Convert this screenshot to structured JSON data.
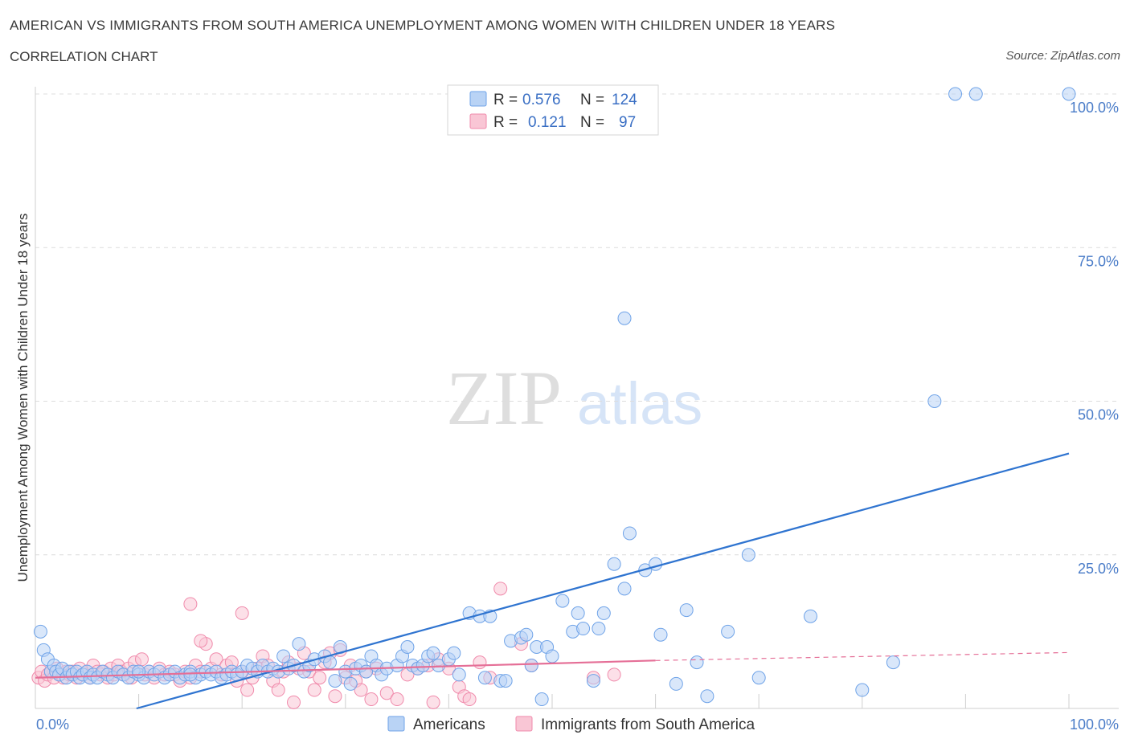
{
  "header": {
    "title": "AMERICAN VS IMMIGRANTS FROM SOUTH AMERICA UNEMPLOYMENT AMONG WOMEN WITH CHILDREN UNDER 18 YEARS",
    "subtitle": "CORRELATION CHART",
    "source": "Source: ZipAtlas.com"
  },
  "legend": {
    "r_label": "R =",
    "n_label": "N =",
    "series": [
      {
        "r": "0.576",
        "n": "124"
      },
      {
        "r": "0.121",
        "n": "97"
      }
    ]
  },
  "watermark": {
    "zip": "ZIP",
    "atlas": "atlas"
  },
  "colors": {
    "americans": "#6fa3e8",
    "americans_fill": "#b9d3f5",
    "americans_line": "#2f74d0",
    "immigrants": "#f08aab",
    "immigrants_fill": "#f9c6d5",
    "immigrants_line": "#e56f97",
    "tick_text": "#4a7cc8",
    "grid": "#dcdcdc"
  },
  "chart_data": {
    "type": "scatter",
    "ylabel": "Unemployment Among Women with Children Under 18 years",
    "xlim": [
      0,
      100
    ],
    "ylim": [
      0,
      100
    ],
    "x_tick_labels": [
      "0.0%",
      "100.0%"
    ],
    "y_tick_labels": [
      "25.0%",
      "50.0%",
      "75.0%",
      "100.0%"
    ],
    "y_ticks": [
      25,
      50,
      75,
      100
    ],
    "grid": true,
    "legend_placement": "top-center",
    "series": [
      {
        "name": "Americans",
        "trend": {
          "x": [
            0,
            100
          ],
          "y": [
            -4.5,
            41.5
          ]
        },
        "points": [
          [
            0.5,
            12.5
          ],
          [
            0.8,
            9.5
          ],
          [
            1.2,
            8
          ],
          [
            1.5,
            6
          ],
          [
            1.8,
            7
          ],
          [
            2,
            6
          ],
          [
            2.3,
            5.5
          ],
          [
            2.6,
            6.5
          ],
          [
            3,
            5
          ],
          [
            3.3,
            6
          ],
          [
            3.6,
            5.5
          ],
          [
            4,
            6
          ],
          [
            4.3,
            5
          ],
          [
            4.6,
            5.5
          ],
          [
            5,
            6
          ],
          [
            5.3,
            5
          ],
          [
            5.6,
            5.5
          ],
          [
            6,
            5
          ],
          [
            6.5,
            6
          ],
          [
            7,
            5.5
          ],
          [
            7.5,
            5
          ],
          [
            8,
            6
          ],
          [
            8.5,
            5.5
          ],
          [
            9,
            5
          ],
          [
            9.5,
            6
          ],
          [
            10,
            5.5
          ],
          [
            10.5,
            5
          ],
          [
            11,
            6
          ],
          [
            11.5,
            5.5
          ],
          [
            12,
            6
          ],
          [
            12.5,
            5
          ],
          [
            13,
            5.5
          ],
          [
            13.5,
            6
          ],
          [
            14,
            5
          ],
          [
            14.5,
            5.5
          ],
          [
            15,
            6
          ],
          [
            15.5,
            5
          ],
          [
            16,
            5.5
          ],
          [
            16.5,
            6
          ],
          [
            17,
            5.5
          ],
          [
            17.5,
            6
          ],
          [
            18,
            5
          ],
          [
            18.5,
            5.5
          ],
          [
            19,
            6
          ],
          [
            19.5,
            5.5
          ],
          [
            20,
            6
          ],
          [
            20.5,
            7
          ],
          [
            21,
            6.5
          ],
          [
            21.5,
            6
          ],
          [
            22,
            7
          ],
          [
            22.5,
            6
          ],
          [
            23,
            6.5
          ],
          [
            23.5,
            6
          ],
          [
            24,
            8.5
          ],
          [
            24.5,
            6.5
          ],
          [
            25,
            7
          ],
          [
            25.5,
            10.5
          ],
          [
            26,
            6
          ],
          [
            26.5,
            7
          ],
          [
            27,
            8
          ],
          [
            28,
            8.5
          ],
          [
            28.5,
            7.5
          ],
          [
            29,
            4.5
          ],
          [
            29.5,
            10
          ],
          [
            30,
            6
          ],
          [
            30.5,
            4
          ],
          [
            31,
            6.5
          ],
          [
            31.5,
            7
          ],
          [
            32,
            6
          ],
          [
            32.5,
            8.5
          ],
          [
            33,
            7
          ],
          [
            33.5,
            5.5
          ],
          [
            34,
            6.5
          ],
          [
            35,
            7
          ],
          [
            35.5,
            8.5
          ],
          [
            36,
            10
          ],
          [
            36.5,
            7
          ],
          [
            37,
            6.5
          ],
          [
            37.5,
            7
          ],
          [
            38,
            8.5
          ],
          [
            38.5,
            9
          ],
          [
            39,
            7
          ],
          [
            40,
            8
          ],
          [
            40.5,
            9
          ],
          [
            41,
            5.5
          ],
          [
            42,
            15.5
          ],
          [
            43,
            15
          ],
          [
            43.5,
            5
          ],
          [
            44,
            15
          ],
          [
            45,
            4.5
          ],
          [
            45.5,
            4.5
          ],
          [
            46,
            11
          ],
          [
            47,
            11.5
          ],
          [
            47.5,
            12
          ],
          [
            48,
            7
          ],
          [
            48.5,
            10
          ],
          [
            49,
            1.5
          ],
          [
            49.5,
            10
          ],
          [
            50,
            8.5
          ],
          [
            51,
            17.5
          ],
          [
            52,
            12.5
          ],
          [
            52.5,
            15.5
          ],
          [
            53,
            13
          ],
          [
            54,
            4.5
          ],
          [
            54.5,
            13
          ],
          [
            55,
            15.5
          ],
          [
            56,
            23.5
          ],
          [
            57,
            19.5
          ],
          [
            57.5,
            28.5
          ],
          [
            59,
            22.5
          ],
          [
            60,
            23.5
          ],
          [
            60.5,
            12
          ],
          [
            62,
            4
          ],
          [
            63,
            16
          ],
          [
            64,
            7.5
          ],
          [
            65,
            2
          ],
          [
            67,
            12.5
          ],
          [
            69,
            25
          ],
          [
            70,
            5
          ],
          [
            75,
            15
          ],
          [
            80,
            3
          ],
          [
            83,
            7.5
          ],
          [
            87,
            50
          ],
          [
            89,
            100
          ],
          [
            91,
            100
          ],
          [
            100,
            100
          ],
          [
            57,
            63.5
          ],
          [
            10,
            6
          ],
          [
            15,
            5.5
          ]
        ]
      },
      {
        "name": "Immigrants from South America",
        "trend": {
          "x": [
            0,
            60
          ],
          "y": [
            5,
            7.8
          ]
        },
        "trend_extended": {
          "x": [
            60,
            100
          ],
          "y": [
            7.8,
            9.1
          ]
        },
        "points": [
          [
            0.3,
            5
          ],
          [
            0.6,
            6
          ],
          [
            0.9,
            4.5
          ],
          [
            1.2,
            5.5
          ],
          [
            1.5,
            6
          ],
          [
            1.8,
            5
          ],
          [
            2.1,
            6.5
          ],
          [
            2.4,
            5.5
          ],
          [
            2.7,
            5
          ],
          [
            3,
            6
          ],
          [
            3.3,
            5.5
          ],
          [
            3.6,
            6
          ],
          [
            4,
            5
          ],
          [
            4.3,
            6.5
          ],
          [
            4.6,
            5.5
          ],
          [
            5,
            6
          ],
          [
            5.3,
            5
          ],
          [
            5.6,
            7
          ],
          [
            6,
            6
          ],
          [
            6.3,
            5.5
          ],
          [
            6.6,
            6
          ],
          [
            7,
            5
          ],
          [
            7.3,
            6.5
          ],
          [
            7.6,
            5.5
          ],
          [
            8,
            7
          ],
          [
            8.3,
            6
          ],
          [
            8.6,
            5.5
          ],
          [
            9,
            6.5
          ],
          [
            9.3,
            5
          ],
          [
            9.6,
            7.5
          ],
          [
            10,
            6
          ],
          [
            10.3,
            8
          ],
          [
            10.6,
            5.5
          ],
          [
            11,
            6
          ],
          [
            11.5,
            5
          ],
          [
            12,
            6.5
          ],
          [
            12.5,
            5.5
          ],
          [
            13,
            6
          ],
          [
            13.5,
            5.5
          ],
          [
            14,
            4.5
          ],
          [
            14.5,
            6
          ],
          [
            15,
            5
          ],
          [
            15.5,
            7
          ],
          [
            16,
            6
          ],
          [
            16.5,
            10.5
          ],
          [
            17,
            6.5
          ],
          [
            17.5,
            8
          ],
          [
            18,
            5.5
          ],
          [
            18.5,
            7
          ],
          [
            19,
            7.5
          ],
          [
            19.5,
            4.5
          ],
          [
            20,
            6
          ],
          [
            20.5,
            3
          ],
          [
            21,
            5
          ],
          [
            21.5,
            6.5
          ],
          [
            22,
            8.5
          ],
          [
            22.5,
            7
          ],
          [
            23,
            4.5
          ],
          [
            23.5,
            3
          ],
          [
            24,
            6
          ],
          [
            24.5,
            7.5
          ],
          [
            25,
            1
          ],
          [
            25.5,
            6.5
          ],
          [
            26,
            9
          ],
          [
            26.5,
            6
          ],
          [
            27,
            3
          ],
          [
            27.5,
            5
          ],
          [
            28,
            7.5
          ],
          [
            28.5,
            9
          ],
          [
            29,
            2
          ],
          [
            29.5,
            9.5
          ],
          [
            30,
            5
          ],
          [
            30.5,
            7
          ],
          [
            31,
            4.5
          ],
          [
            31.5,
            3
          ],
          [
            32,
            6
          ],
          [
            32.5,
            1.5
          ],
          [
            33,
            6.5
          ],
          [
            34,
            2.5
          ],
          [
            35,
            1.5
          ],
          [
            36,
            5.5
          ],
          [
            37,
            6.5
          ],
          [
            38,
            7
          ],
          [
            38.5,
            1
          ],
          [
            39,
            8
          ],
          [
            40,
            6.5
          ],
          [
            41,
            3.5
          ],
          [
            41.5,
            2
          ],
          [
            42,
            1.5
          ],
          [
            43,
            7.5
          ],
          [
            44,
            5
          ],
          [
            45,
            19.5
          ],
          [
            47,
            10.5
          ],
          [
            48,
            7
          ],
          [
            54,
            5
          ],
          [
            56,
            5.5
          ],
          [
            15,
            17
          ],
          [
            20,
            15.5
          ],
          [
            16,
            11
          ]
        ]
      }
    ]
  },
  "bottom_legend": [
    "Americans",
    "Immigrants from South America"
  ]
}
